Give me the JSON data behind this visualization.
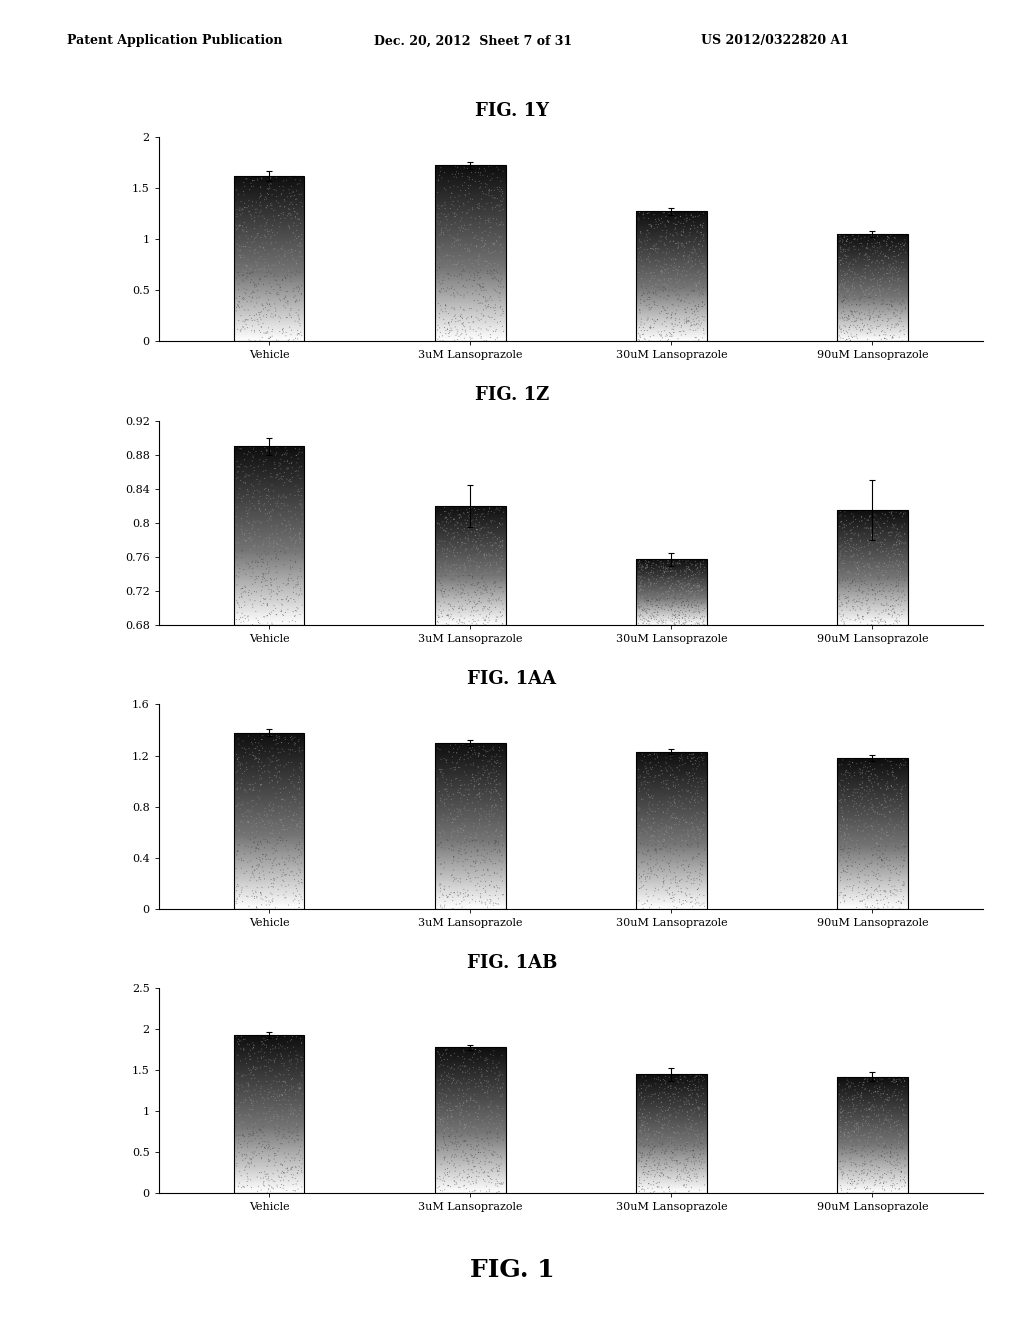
{
  "header_left": "Patent Application Publication",
  "header_mid": "Dec. 20, 2012  Sheet 7 of 31",
  "header_right": "US 2012/0322820 A1",
  "footer": "FIG. 1",
  "categories": [
    "Vehicle",
    "3uM Lansoprazole",
    "30uM Lansoprazole",
    "90uM Lansoprazole"
  ],
  "charts": [
    {
      "title": "FIG. 1Y",
      "values": [
        1.62,
        1.72,
        1.27,
        1.05
      ],
      "errors": [
        0.05,
        0.03,
        0.03,
        0.03
      ],
      "ylim": [
        0,
        2
      ],
      "yticks": [
        0,
        0.5,
        1,
        1.5,
        2
      ],
      "ytick_labels": [
        "0",
        "0.5",
        "1",
        "1.5",
        "2"
      ]
    },
    {
      "title": "FIG. 1Z",
      "values": [
        0.89,
        0.82,
        0.757,
        0.815
      ],
      "errors": [
        0.01,
        0.025,
        0.008,
        0.035
      ],
      "ylim": [
        0.68,
        0.92
      ],
      "yticks": [
        0.68,
        0.72,
        0.76,
        0.8,
        0.84,
        0.88,
        0.92
      ],
      "ytick_labels": [
        "0.68",
        "0.72",
        "0.76",
        "0.8",
        "0.84",
        "0.88",
        "0.92"
      ]
    },
    {
      "title": "FIG. 1AA",
      "values": [
        1.38,
        1.3,
        1.23,
        1.18
      ],
      "errors": [
        0.03,
        0.025,
        0.02,
        0.025
      ],
      "ylim": [
        0,
        1.6
      ],
      "yticks": [
        0,
        0.4,
        0.8,
        1.2,
        1.6
      ],
      "ytick_labels": [
        "0",
        "0.4",
        "0.8",
        "1.2",
        "1.6"
      ]
    },
    {
      "title": "FIG. 1AB",
      "values": [
        1.93,
        1.78,
        1.45,
        1.42
      ],
      "errors": [
        0.04,
        0.03,
        0.08,
        0.05
      ],
      "ylim": [
        0,
        2.5
      ],
      "yticks": [
        0,
        0.5,
        1,
        1.5,
        2,
        2.5
      ],
      "ytick_labels": [
        "0",
        "0.5",
        "1",
        "1.5",
        "2",
        "2.5"
      ]
    }
  ],
  "bar_width": 0.35,
  "background_color": "#ffffff",
  "fig_background": "#ffffff",
  "header_fontsize": 9,
  "title_fontsize": 13,
  "tick_fontsize": 8,
  "footer_fontsize": 18
}
